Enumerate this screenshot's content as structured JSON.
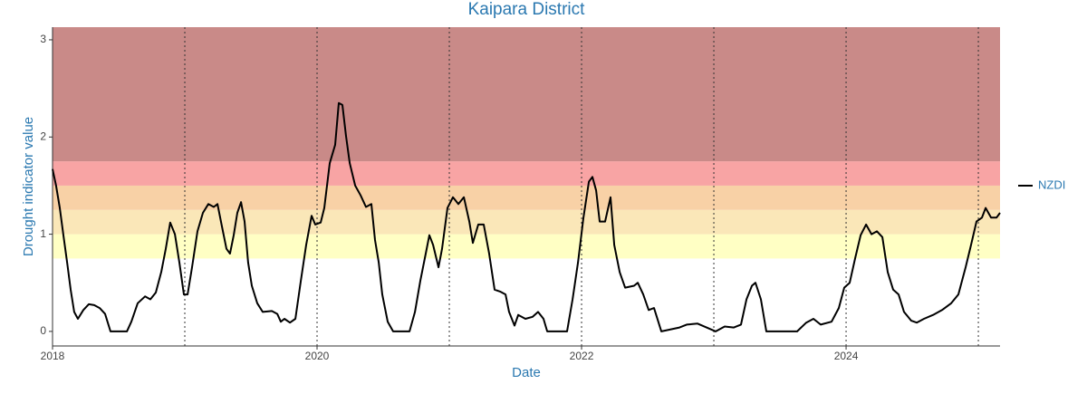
{
  "chart_data": {
    "type": "line",
    "title": "Kaipara District",
    "x_label": "Date",
    "y_label": "Drought indicator value",
    "xlim": [
      2018,
      2025.164
    ],
    "ylim": [
      -0.15,
      3.13
    ],
    "xticks": [
      2018,
      2020,
      2022,
      2024
    ],
    "yticks": [
      0,
      1,
      2,
      3
    ],
    "grid": false,
    "legend": "right",
    "vlines": [
      2019,
      2020,
      2021,
      2022,
      2023,
      2024,
      2025
    ],
    "bands": [
      {
        "from": 0.75,
        "to": 1,
        "color": "#ffffc4"
      },
      {
        "from": 1,
        "to": 1.25,
        "color": "#fae7b8"
      },
      {
        "from": 1.25,
        "to": 1.5,
        "color": "#f8d1a6"
      },
      {
        "from": 1.5,
        "to": 1.75,
        "color": "#f8a4a4"
      },
      {
        "from": 1.75,
        "to": 3.13,
        "color": "#c98a88"
      }
    ],
    "x": [
      2018.0,
      2018.027,
      2018.055,
      2018.082,
      2018.11,
      2018.137,
      2018.164,
      2018.192,
      2018.233,
      2018.274,
      2018.315,
      2018.356,
      2018.397,
      2018.438,
      2018.562,
      2018.596,
      2018.644,
      2018.699,
      2018.74,
      2018.781,
      2018.822,
      2018.856,
      2018.89,
      2018.925,
      2018.959,
      2018.993,
      2019.021,
      2019.055,
      2019.096,
      2019.137,
      2019.178,
      2019.219,
      2019.247,
      2019.281,
      2019.315,
      2019.342,
      2019.37,
      2019.397,
      2019.425,
      2019.452,
      2019.479,
      2019.507,
      2019.548,
      2019.589,
      2019.658,
      2019.699,
      2019.726,
      2019.753,
      2019.795,
      2019.836,
      2019.877,
      2019.918,
      2019.959,
      2019.986,
      2020.027,
      2020.055,
      2020.096,
      2020.137,
      2020.164,
      2020.192,
      2020.219,
      2020.247,
      2020.288,
      2020.329,
      2020.37,
      2020.411,
      2020.438,
      2020.466,
      2020.493,
      2020.534,
      2020.575,
      2020.699,
      2020.74,
      2020.781,
      2020.822,
      2020.849,
      2020.877,
      2020.918,
      2020.945,
      2020.986,
      2021.027,
      2021.068,
      2021.11,
      2021.151,
      2021.178,
      2021.219,
      2021.26,
      2021.301,
      2021.342,
      2021.384,
      2021.425,
      2021.452,
      2021.493,
      2021.521,
      2021.575,
      2021.63,
      2021.671,
      2021.712,
      2021.74,
      2021.89,
      2021.932,
      2021.973,
      2022.014,
      2022.055,
      2022.082,
      2022.11,
      2022.137,
      2022.178,
      2022.219,
      2022.247,
      2022.288,
      2022.329,
      2022.397,
      2022.425,
      2022.466,
      2022.507,
      2022.548,
      2022.603,
      2022.74,
      2022.795,
      2022.877,
      2022.945,
      2023.014,
      2023.082,
      2023.151,
      2023.205,
      2023.247,
      2023.288,
      2023.315,
      2023.356,
      2023.397,
      2023.63,
      2023.699,
      2023.753,
      2023.808,
      2023.89,
      2023.945,
      2023.986,
      2024.027,
      2024.068,
      2024.11,
      2024.151,
      2024.192,
      2024.233,
      2024.274,
      2024.315,
      2024.356,
      2024.397,
      2024.438,
      2024.493,
      2024.534,
      2024.589,
      2024.658,
      2024.726,
      2024.795,
      2024.849,
      2024.904,
      2024.945,
      2024.986,
      2025.027,
      2025.055,
      2025.096,
      2025.137,
      2025.164
    ],
    "series": [
      {
        "name": "NZDI",
        "color": "#000000",
        "values": [
          1.67,
          1.5,
          1.27,
          0.99,
          0.71,
          0.43,
          0.2,
          0.13,
          0.22,
          0.28,
          0.27,
          0.24,
          0.18,
          0,
          0,
          0.1,
          0.29,
          0.36,
          0.33,
          0.4,
          0.61,
          0.85,
          1.12,
          1.0,
          0.71,
          0.38,
          0.38,
          0.66,
          1.03,
          1.22,
          1.31,
          1.28,
          1.31,
          1.08,
          0.85,
          0.8,
          0.99,
          1.22,
          1.33,
          1.13,
          0.71,
          0.47,
          0.29,
          0.2,
          0.21,
          0.18,
          0.1,
          0.13,
          0.09,
          0.13,
          0.52,
          0.89,
          1.19,
          1.1,
          1.12,
          1.27,
          1.73,
          1.92,
          2.35,
          2.33,
          2.01,
          1.73,
          1.5,
          1.4,
          1.28,
          1.31,
          0.94,
          0.71,
          0.38,
          0.1,
          0,
          0,
          0.2,
          0.52,
          0.8,
          0.99,
          0.89,
          0.66,
          0.85,
          1.27,
          1.38,
          1.31,
          1.38,
          1.13,
          0.91,
          1.1,
          1.1,
          0.8,
          0.43,
          0.41,
          0.38,
          0.2,
          0.06,
          0.17,
          0.13,
          0.15,
          0.2,
          0.13,
          0,
          0,
          0.33,
          0.71,
          1.17,
          1.54,
          1.59,
          1.45,
          1.13,
          1.13,
          1.38,
          0.89,
          0.61,
          0.45,
          0.47,
          0.5,
          0.38,
          0.22,
          0.24,
          0,
          0.04,
          0.07,
          0.08,
          0.04,
          0,
          0.05,
          0.04,
          0.07,
          0.33,
          0.47,
          0.5,
          0.33,
          0,
          0,
          0.09,
          0.13,
          0.07,
          0.1,
          0.24,
          0.45,
          0.5,
          0.75,
          0.99,
          1.1,
          1.0,
          1.03,
          0.97,
          0.61,
          0.43,
          0.38,
          0.2,
          0.11,
          0.09,
          0.13,
          0.17,
          0.22,
          0.29,
          0.38,
          0.66,
          0.89,
          1.13,
          1.17,
          1.27,
          1.17,
          1.17,
          1.22
        ]
      }
    ]
  }
}
